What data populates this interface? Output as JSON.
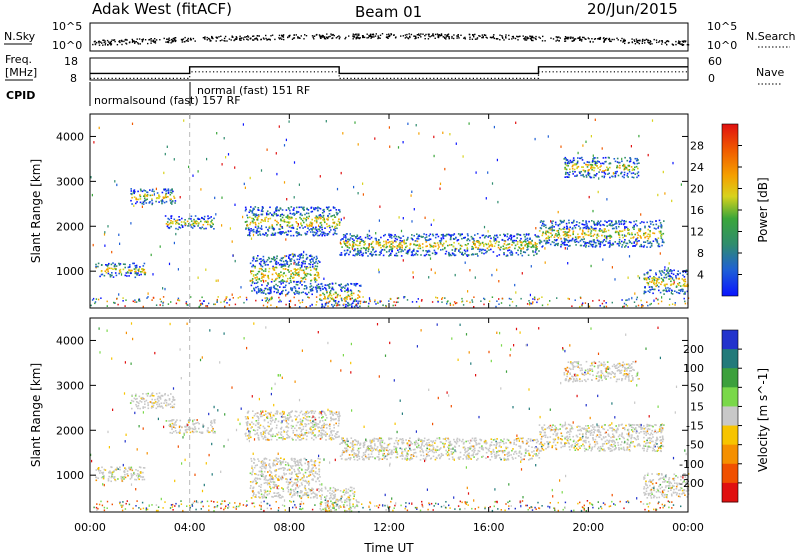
{
  "header": {
    "station": "Adak West (fitACF)",
    "beam": "Beam 01",
    "date": "20/Jun/2015"
  },
  "nsky_panel": {
    "left_label": "N.Sky",
    "right_label": "N.Search",
    "tick_top": "10^5",
    "tick_bottom": "10^0",
    "right_tick_top": "10^5",
    "right_tick_bottom": "10^0"
  },
  "freq_panel": {
    "left_label_1": "Freq.",
    "left_label_2": "[MHz]",
    "right_label": "Nave",
    "left_ticks": [
      "18",
      "8"
    ],
    "right_ticks": [
      "60",
      "0"
    ],
    "freq_steps": [
      {
        "t": 0.0,
        "mhz": 11.0
      },
      {
        "t": 4.0,
        "mhz": 14.0
      },
      {
        "t": 10.0,
        "mhz": 11.0
      },
      {
        "t": 18.0,
        "mhz": 14.0
      },
      {
        "t": 24.0,
        "mhz": 14.0
      }
    ]
  },
  "cpid": {
    "label": "CPID",
    "items": [
      {
        "start": 0.0,
        "text": "normalsound (fast) 157 RF"
      },
      {
        "start": 4.0,
        "text": "normal (fast) 151 RF"
      }
    ]
  },
  "chart_data": [
    {
      "type": "heatmap",
      "name": "power",
      "ylabel": "Slant Range [km]",
      "xlabel": "Time UT",
      "xlim": [
        0,
        24
      ],
      "ylim": [
        180,
        4500
      ],
      "yticks": [
        "1000",
        "2000",
        "3000",
        "4000"
      ],
      "xticks": [
        "00:00",
        "04:00",
        "08:00",
        "12:00",
        "16:00",
        "20:00",
        "00:00"
      ],
      "colorbar": {
        "label": "Power [dB]",
        "ticks": [
          "4",
          "8",
          "12",
          "16",
          "20",
          "24",
          "28"
        ],
        "colors": [
          "#0a14ff",
          "#1e5fd6",
          "#2f8c6e",
          "#3aa63a",
          "#d8d21c",
          "#f5a000",
          "#f05a00",
          "#e01010"
        ]
      },
      "echo_regions": [
        {
          "t0": 0.2,
          "t1": 2.2,
          "r0": 880,
          "r1": 1200
        },
        {
          "t0": 1.6,
          "t1": 3.4,
          "r0": 2500,
          "r1": 2850
        },
        {
          "t0": 3.0,
          "t1": 5.0,
          "r0": 1950,
          "r1": 2250
        },
        {
          "t0": 6.2,
          "t1": 10.0,
          "r0": 1800,
          "r1": 2450
        },
        {
          "t0": 6.4,
          "t1": 9.2,
          "r0": 500,
          "r1": 1400
        },
        {
          "t0": 9.2,
          "t1": 10.8,
          "r0": 200,
          "r1": 750
        },
        {
          "t0": 10.0,
          "t1": 18.0,
          "r0": 1350,
          "r1": 1850
        },
        {
          "t0": 18.0,
          "t1": 23.0,
          "r0": 1550,
          "r1": 2150
        },
        {
          "t0": 19.0,
          "t1": 22.0,
          "r0": 3100,
          "r1": 3550
        },
        {
          "t0": 22.2,
          "t1": 24.0,
          "r0": 500,
          "r1": 1050
        }
      ]
    },
    {
      "type": "heatmap",
      "name": "velocity",
      "ylabel": "Slant Range [km]",
      "xlabel": "Time UT",
      "xlim": [
        0,
        24
      ],
      "ylim": [
        180,
        4500
      ],
      "yticks": [
        "1000",
        "2000",
        "3000",
        "4000"
      ],
      "xticks": [
        "00:00",
        "04:00",
        "08:00",
        "12:00",
        "16:00",
        "20:00",
        "00:00"
      ],
      "colorbar": {
        "label": "Velocity [m s^-1]",
        "ticks": [
          "200",
          "100",
          "50",
          "15",
          "-15",
          "-50",
          "-100",
          "-200"
        ],
        "colors": [
          "#2233cc",
          "#227a7a",
          "#3ca03c",
          "#7ad84a",
          "#c8c8c8",
          "#f7c400",
          "#f59000",
          "#f05000",
          "#e01010"
        ]
      },
      "echo_regions": [
        {
          "t0": 0.2,
          "t1": 2.2,
          "r0": 880,
          "r1": 1200
        },
        {
          "t0": 1.6,
          "t1": 3.4,
          "r0": 2500,
          "r1": 2850
        },
        {
          "t0": 3.0,
          "t1": 5.0,
          "r0": 1950,
          "r1": 2250
        },
        {
          "t0": 6.2,
          "t1": 10.0,
          "r0": 1800,
          "r1": 2450
        },
        {
          "t0": 6.4,
          "t1": 9.2,
          "r0": 500,
          "r1": 1400
        },
        {
          "t0": 9.2,
          "t1": 10.8,
          "r0": 200,
          "r1": 750
        },
        {
          "t0": 10.0,
          "t1": 18.0,
          "r0": 1350,
          "r1": 1850
        },
        {
          "t0": 18.0,
          "t1": 23.0,
          "r0": 1550,
          "r1": 2150
        },
        {
          "t0": 19.0,
          "t1": 22.0,
          "r0": 3100,
          "r1": 3550
        },
        {
          "t0": 22.2,
          "t1": 24.0,
          "r0": 500,
          "r1": 1050
        }
      ]
    }
  ],
  "footer": {
    "xlabel": "Time UT"
  }
}
